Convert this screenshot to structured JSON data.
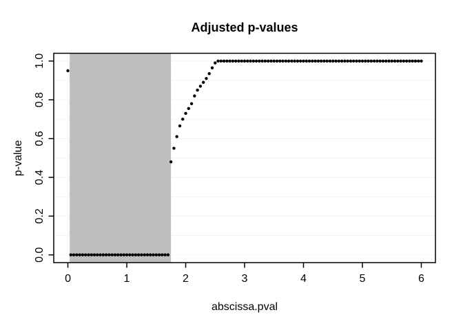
{
  "chart_data": {
    "type": "scatter",
    "title": "Adjusted p-values",
    "xlabel": "abscissa.pval",
    "ylabel": "p-value",
    "xlim": [
      0,
      6
    ],
    "ylim": [
      0,
      1
    ],
    "axis_padding_fraction": 0.04,
    "x_tick_values": [
      0,
      1,
      2,
      3,
      4,
      5,
      6
    ],
    "x_tick_labels": [
      "0",
      "1",
      "2",
      "3",
      "4",
      "5",
      "6"
    ],
    "y_tick_values": [
      0.0,
      0.2,
      0.4,
      0.6,
      0.8,
      1.0
    ],
    "y_tick_labels": [
      "0.0",
      "0.2",
      "0.4",
      "0.6",
      "0.8",
      "1.0"
    ],
    "grid": {
      "horizontal_lines_from": 0.0,
      "horizontal_lines_to": 1.0,
      "horizontal_step": 0.1,
      "vertical_lines": false,
      "style": "dotted",
      "color": "#d3d3d3"
    },
    "shaded_region": {
      "x0": 0.03,
      "x1": 1.75,
      "full_height": true,
      "color": "#bebebe"
    },
    "point_style": {
      "shape": "filled-circle",
      "color": "#000000",
      "radius_px": 2.2
    },
    "frame_color": "#000000",
    "background_color": "#ffffff",
    "points": [
      [
        0,
        0.95
      ],
      [
        0.05,
        0
      ],
      [
        0.1,
        0
      ],
      [
        0.15,
        0
      ],
      [
        0.2,
        0
      ],
      [
        0.25,
        0
      ],
      [
        0.3,
        0
      ],
      [
        0.35,
        0
      ],
      [
        0.4,
        0
      ],
      [
        0.45,
        0
      ],
      [
        0.5,
        0
      ],
      [
        0.55,
        0
      ],
      [
        0.6,
        0
      ],
      [
        0.65,
        0
      ],
      [
        0.7,
        0
      ],
      [
        0.75,
        0
      ],
      [
        0.8,
        0
      ],
      [
        0.85,
        0
      ],
      [
        0.9,
        0
      ],
      [
        0.95,
        0
      ],
      [
        1,
        0
      ],
      [
        1.05,
        0
      ],
      [
        1.1,
        0
      ],
      [
        1.15,
        0
      ],
      [
        1.2,
        0
      ],
      [
        1.25,
        0
      ],
      [
        1.3,
        0
      ],
      [
        1.35,
        0
      ],
      [
        1.4,
        0
      ],
      [
        1.45,
        0
      ],
      [
        1.5,
        0
      ],
      [
        1.55,
        0
      ],
      [
        1.6,
        0
      ],
      [
        1.65,
        0
      ],
      [
        1.7,
        0
      ],
      [
        1.75,
        0.48
      ],
      [
        1.8,
        0.55
      ],
      [
        1.85,
        0.61
      ],
      [
        1.9,
        0.665
      ],
      [
        1.95,
        0.7
      ],
      [
        2,
        0.73
      ],
      [
        2.05,
        0.755
      ],
      [
        2.1,
        0.78
      ],
      [
        2.15,
        0.82
      ],
      [
        2.2,
        0.85
      ],
      [
        2.25,
        0.87
      ],
      [
        2.3,
        0.89
      ],
      [
        2.35,
        0.91
      ],
      [
        2.4,
        0.935
      ],
      [
        2.45,
        0.965
      ],
      [
        2.5,
        0.99
      ],
      [
        2.55,
        1
      ],
      [
        2.6,
        1
      ],
      [
        2.65,
        1
      ],
      [
        2.7,
        1
      ],
      [
        2.75,
        1
      ],
      [
        2.8,
        1
      ],
      [
        2.85,
        1
      ],
      [
        2.9,
        1
      ],
      [
        2.95,
        1
      ],
      [
        3,
        1
      ],
      [
        3.05,
        1
      ],
      [
        3.1,
        1
      ],
      [
        3.15,
        1
      ],
      [
        3.2,
        1
      ],
      [
        3.25,
        1
      ],
      [
        3.3,
        1
      ],
      [
        3.35,
        1
      ],
      [
        3.4,
        1
      ],
      [
        3.45,
        1
      ],
      [
        3.5,
        1
      ],
      [
        3.55,
        1
      ],
      [
        3.6,
        1
      ],
      [
        3.65,
        1
      ],
      [
        3.7,
        1
      ],
      [
        3.75,
        1
      ],
      [
        3.8,
        1
      ],
      [
        3.85,
        1
      ],
      [
        3.9,
        1
      ],
      [
        3.95,
        1
      ],
      [
        4,
        1
      ],
      [
        4.05,
        1
      ],
      [
        4.1,
        1
      ],
      [
        4.15,
        1
      ],
      [
        4.2,
        1
      ],
      [
        4.25,
        1
      ],
      [
        4.3,
        1
      ],
      [
        4.35,
        1
      ],
      [
        4.4,
        1
      ],
      [
        4.45,
        1
      ],
      [
        4.5,
        1
      ],
      [
        4.55,
        1
      ],
      [
        4.6,
        1
      ],
      [
        4.65,
        1
      ],
      [
        4.7,
        1
      ],
      [
        4.75,
        1
      ],
      [
        4.8,
        1
      ],
      [
        4.85,
        1
      ],
      [
        4.9,
        1
      ],
      [
        4.95,
        1
      ],
      [
        5,
        1
      ],
      [
        5.05,
        1
      ],
      [
        5.1,
        1
      ],
      [
        5.15,
        1
      ],
      [
        5.2,
        1
      ],
      [
        5.25,
        1
      ],
      [
        5.3,
        1
      ],
      [
        5.35,
        1
      ],
      [
        5.4,
        1
      ],
      [
        5.45,
        1
      ],
      [
        5.5,
        1
      ],
      [
        5.55,
        1
      ],
      [
        5.6,
        1
      ],
      [
        5.65,
        1
      ],
      [
        5.7,
        1
      ],
      [
        5.75,
        1
      ],
      [
        5.8,
        1
      ],
      [
        5.85,
        1
      ],
      [
        5.9,
        1
      ],
      [
        5.95,
        1
      ],
      [
        6,
        1
      ]
    ]
  }
}
